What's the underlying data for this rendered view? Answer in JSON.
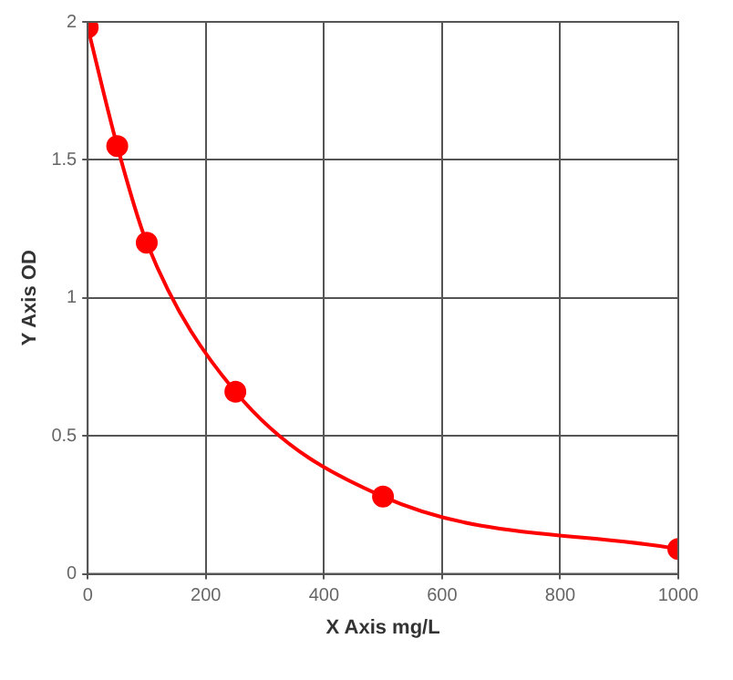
{
  "chart_data": {
    "type": "line",
    "xlabel": "X Axis mg/L",
    "ylabel": "Y Axis OD",
    "x": [
      0,
      50,
      100,
      250,
      500,
      1000
    ],
    "series": [
      {
        "color": "#ff0000",
        "values": [
          1.98,
          1.55,
          1.2,
          0.66,
          0.28,
          0.09
        ]
      }
    ],
    "xlim": [
      0,
      1000
    ],
    "xticks": [
      0,
      200,
      400,
      600,
      800,
      1000
    ],
    "ylim": [
      0,
      2
    ],
    "yticks": [
      0,
      0.5,
      1,
      1.5,
      2
    ],
    "grid": true,
    "legend": false,
    "marker": "circle",
    "line_style": "solid"
  }
}
